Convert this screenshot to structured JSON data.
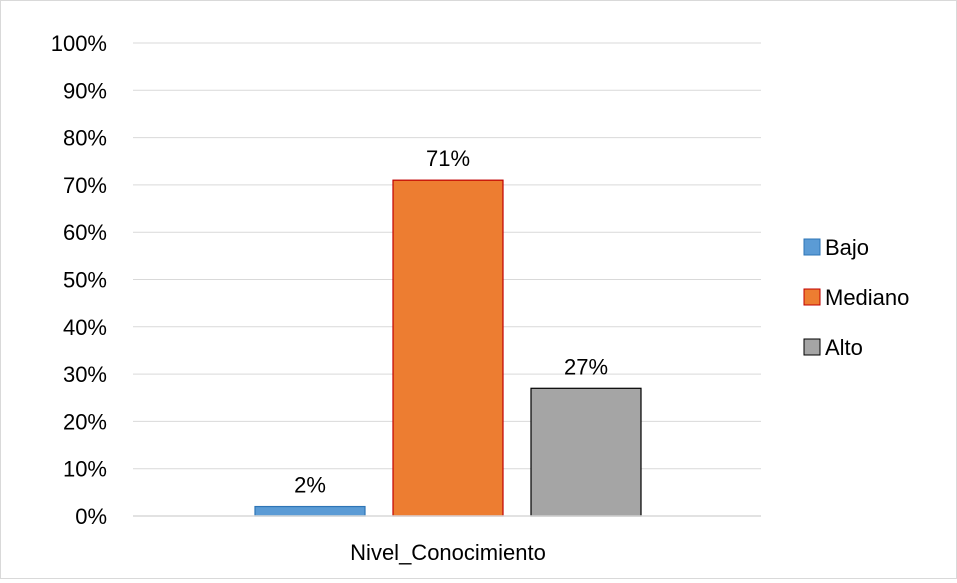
{
  "chart_data": {
    "type": "bar",
    "categories": [
      "Nivel_Conocimiento"
    ],
    "series": [
      {
        "name": "Bajo",
        "values": [
          2
        ],
        "label": "2%",
        "color": "#5b9bd5",
        "stroke": "#2e75b6"
      },
      {
        "name": "Mediano",
        "values": [
          71
        ],
        "label": "71%",
        "color": "#ed7d31",
        "stroke": "#c00000"
      },
      {
        "name": "Alto",
        "values": [
          27
        ],
        "label": "27%",
        "color": "#a5a5a5",
        "stroke": "#000000"
      }
    ],
    "y_ticks": [
      "0%",
      "10%",
      "20%",
      "30%",
      "40%",
      "50%",
      "60%",
      "70%",
      "80%",
      "90%",
      "100%"
    ],
    "ylim": [
      0,
      100
    ],
    "grid": true,
    "legend_position": "right",
    "xlabel": "",
    "ylabel": "",
    "title": ""
  }
}
